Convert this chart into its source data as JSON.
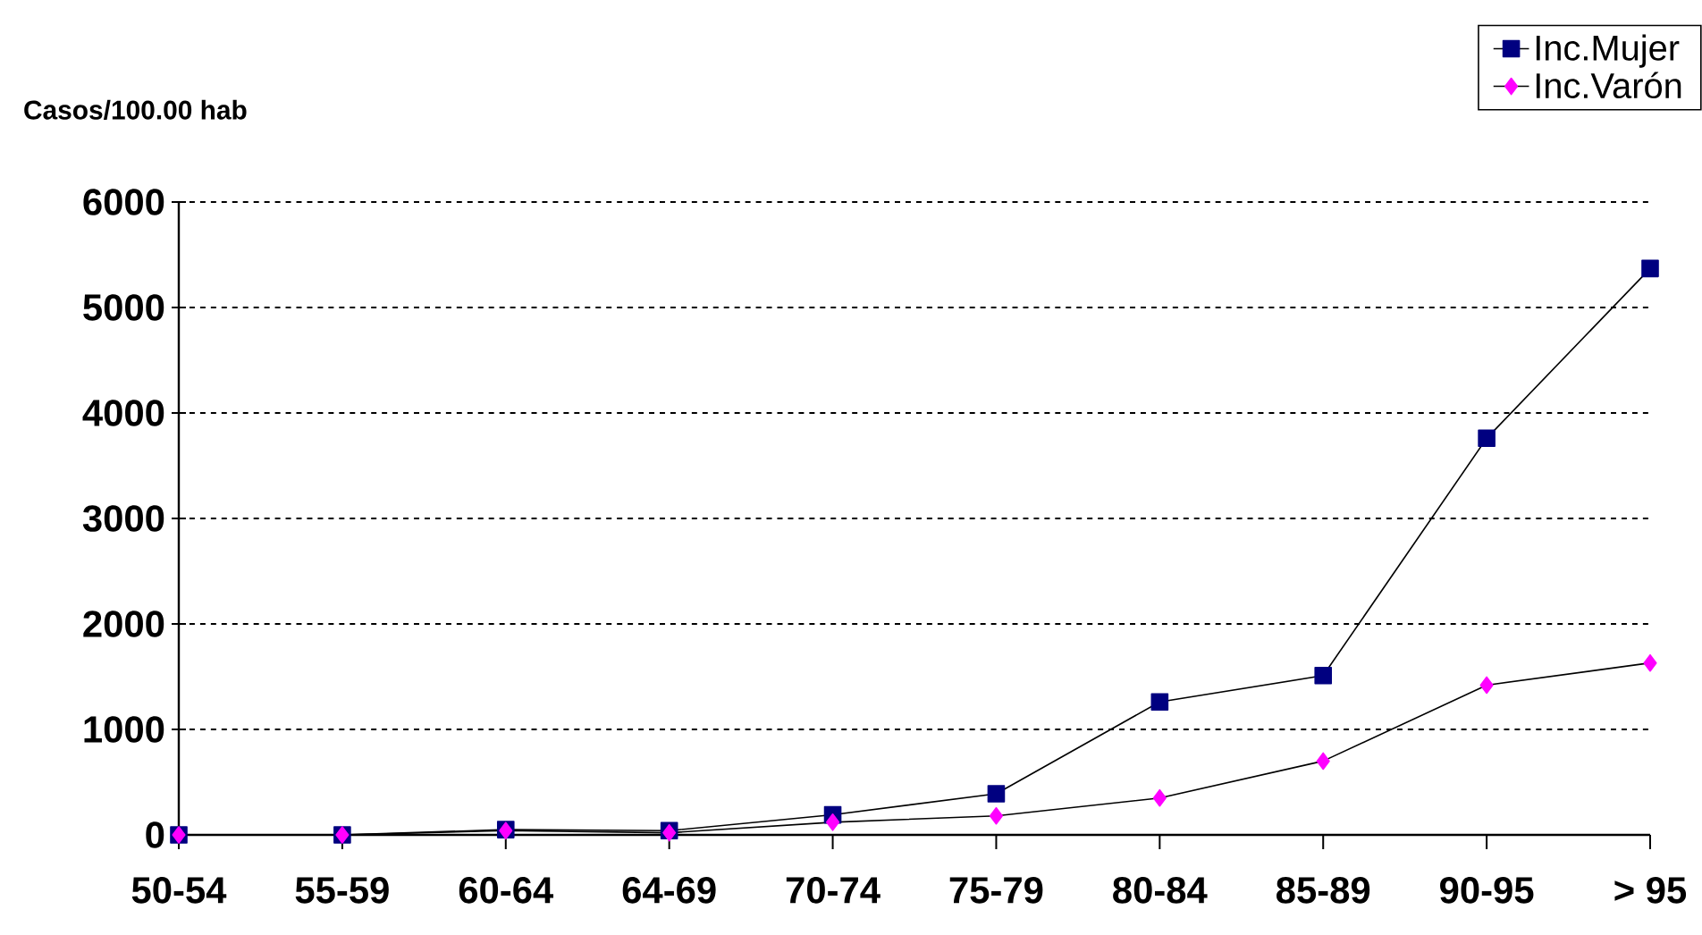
{
  "chart_data": {
    "type": "line",
    "ylabel": "Casos/100.00 hab",
    "categories": [
      "50-54",
      "55-59",
      "60-64",
      "64-69",
      "70-74",
      "75-79",
      "80-84",
      "85-89",
      "90-95",
      "> 95"
    ],
    "series": [
      {
        "name": "Inc.Mujer",
        "color": "#000080",
        "marker": "square",
        "values": [
          0,
          0,
          50,
          40,
          190,
          390,
          1260,
          1510,
          3760,
          5370
        ]
      },
      {
        "name": "Inc.Varón",
        "color": "#ff00ff",
        "marker": "diamond",
        "values": [
          0,
          0,
          40,
          20,
          120,
          180,
          350,
          700,
          1420,
          1630
        ]
      }
    ],
    "ylim": [
      0,
      6000
    ],
    "yticks": [
      0,
      1000,
      2000,
      3000,
      4000,
      5000,
      6000
    ],
    "grid": "y",
    "legend": "top right",
    "line_style": "solid"
  }
}
